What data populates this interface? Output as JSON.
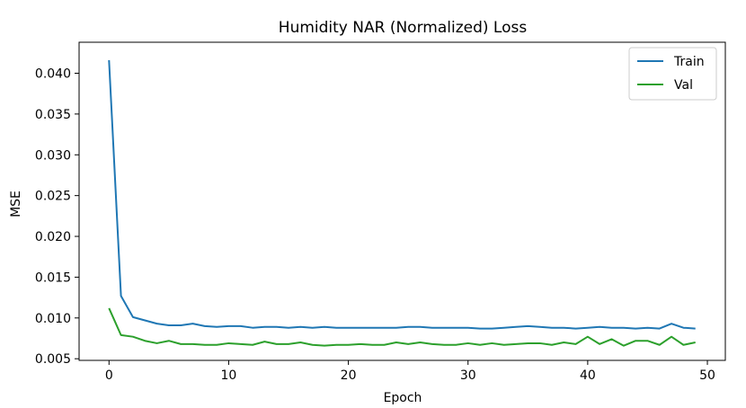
{
  "chart_data": {
    "type": "line",
    "title": "Humidity NAR (Normalized) Loss",
    "xlabel": "Epoch",
    "ylabel": "MSE",
    "xlim": [
      -2.5,
      51.5
    ],
    "ylim": [
      0.0048,
      0.0438
    ],
    "xticks": [
      0,
      10,
      20,
      30,
      40,
      50
    ],
    "yticks": [
      0.005,
      0.01,
      0.015,
      0.02,
      0.025,
      0.03,
      0.035,
      0.04
    ],
    "ytick_labels": [
      "0.005",
      "0.010",
      "0.015",
      "0.020",
      "0.025",
      "0.030",
      "0.035",
      "0.040"
    ],
    "grid": false,
    "legend_position": "top-right",
    "x": [
      0,
      1,
      2,
      3,
      4,
      5,
      6,
      7,
      8,
      9,
      10,
      11,
      12,
      13,
      14,
      15,
      16,
      17,
      18,
      19,
      20,
      21,
      22,
      23,
      24,
      25,
      26,
      27,
      28,
      29,
      30,
      31,
      32,
      33,
      34,
      35,
      36,
      37,
      38,
      39,
      40,
      41,
      42,
      43,
      44,
      45,
      46,
      47,
      48,
      49
    ],
    "series": [
      {
        "name": "Train",
        "color": "#1f77b4",
        "values": [
          0.0416,
          0.0127,
          0.0101,
          0.0097,
          0.0093,
          0.0091,
          0.0091,
          0.0093,
          0.009,
          0.0089,
          0.009,
          0.009,
          0.0088,
          0.0089,
          0.0089,
          0.0088,
          0.0089,
          0.0088,
          0.0089,
          0.0088,
          0.0088,
          0.0088,
          0.0088,
          0.0088,
          0.0088,
          0.0089,
          0.0089,
          0.0088,
          0.0088,
          0.0088,
          0.0088,
          0.0087,
          0.0087,
          0.0088,
          0.0089,
          0.009,
          0.0089,
          0.0088,
          0.0088,
          0.0087,
          0.0088,
          0.0089,
          0.0088,
          0.0088,
          0.0087,
          0.0088,
          0.0087,
          0.0093,
          0.0088,
          0.0087
        ]
      },
      {
        "name": "Val",
        "color": "#2ca02c",
        "values": [
          0.0112,
          0.0079,
          0.0077,
          0.0072,
          0.0069,
          0.0072,
          0.0068,
          0.0068,
          0.0067,
          0.0067,
          0.0069,
          0.0068,
          0.0067,
          0.0071,
          0.0068,
          0.0068,
          0.007,
          0.0067,
          0.0066,
          0.0067,
          0.0067,
          0.0068,
          0.0067,
          0.0067,
          0.007,
          0.0068,
          0.007,
          0.0068,
          0.0067,
          0.0067,
          0.0069,
          0.0067,
          0.0069,
          0.0067,
          0.0068,
          0.0069,
          0.0069,
          0.0067,
          0.007,
          0.0068,
          0.0077,
          0.0068,
          0.0074,
          0.0066,
          0.0072,
          0.0072,
          0.0067,
          0.0077,
          0.0067,
          0.007
        ]
      }
    ]
  }
}
